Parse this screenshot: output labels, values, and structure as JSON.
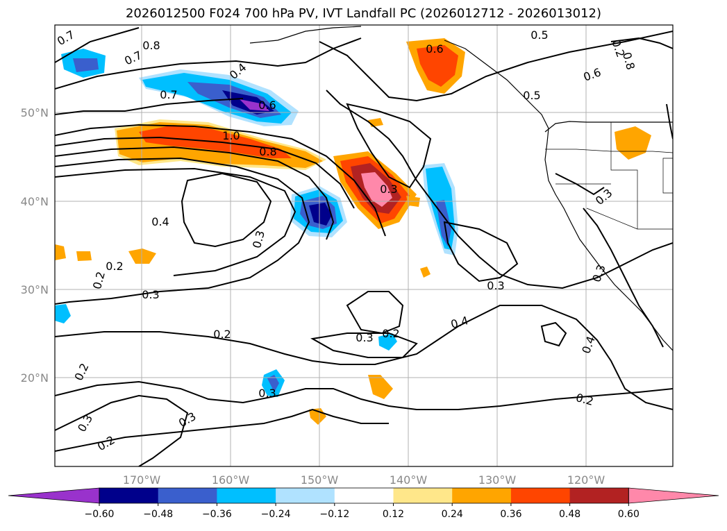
{
  "title": "2026012500 F024 700 hPa PV, IVT Landfall PC (2026012712 - 2026013012)",
  "lon_ticks": [
    "170°W",
    "160°W",
    "150°W",
    "140°W",
    "130°W",
    "120°W"
  ],
  "lat_ticks": [
    "50°N",
    "40°N",
    "30°N",
    "20°N"
  ],
  "colorbar": {
    "ticks": [
      "−0.60",
      "−0.48",
      "−0.36",
      "−0.24",
      "−0.12",
      "0.12",
      "0.24",
      "0.36",
      "0.48",
      "0.60"
    ],
    "colors": [
      "#9932cc",
      "#00008b",
      "#3a5fcd",
      "#00bfff",
      "#b0e2ff",
      "#ffffff",
      "#ffe78a",
      "#ffa500",
      "#ff4500",
      "#b22222",
      "#ff88aa"
    ]
  },
  "contour_labels": [
    "0.7",
    "0.8",
    "0.7",
    "0.4",
    "0.7",
    "0.6",
    "1.0",
    "0.8",
    "0.6",
    "0.5",
    "0.5",
    "0.6",
    "0.8",
    "0.3",
    "0.4",
    "0.3",
    "0.2",
    "0.2",
    "0.3",
    "0.2",
    "0.3",
    "0.4",
    "0.3",
    "0.2",
    "0.2",
    "0.3",
    "0.3",
    "0.3",
    "0.2",
    "0.3",
    "0.4",
    "0.2",
    "0.3",
    "0.2"
  ]
}
